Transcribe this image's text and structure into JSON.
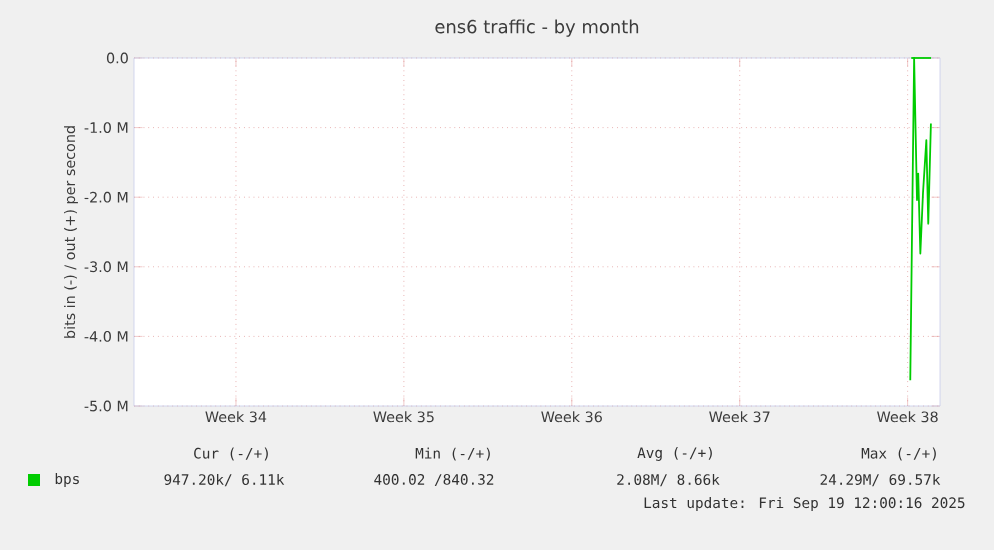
{
  "chart_data": {
    "type": "line",
    "title": "ens6 traffic - by month",
    "ylabel": "bits in (-) / out (+) per second",
    "series": [
      {
        "name": "bps",
        "color": "#00cc00",
        "x": [
          "2025-09-18T14:38",
          "2025-09-18T18:29",
          "2025-09-18T21:22",
          "2025-09-18T22:34",
          "2025-09-19T00:43",
          "2025-09-19T03:22",
          "2025-09-19T06:43",
          "2025-09-19T08:38",
          "2025-09-19T11:17"
        ],
        "values": [
          -4.63,
          0,
          -2.04,
          -1.66,
          -2.81,
          -1.94,
          -1.18,
          -2.38,
          -0.94
        ]
      },
      {
        "color": "#00cc00",
        "x": [
          "2025-09-18T15:36",
          "2025-09-19T11:30"
        ],
        "values": [
          0,
          0
        ]
      }
    ],
    "xlim": [
      "2025-08-17T06:00",
      "2025-09-19T20:24"
    ],
    "ylim": [
      -5,
      0
    ],
    "xticks": [
      {
        "value": "2025-08-21T12:00",
        "label": "Week 34"
      },
      {
        "value": "2025-08-28T12:00",
        "label": "Week 35"
      },
      {
        "value": "2025-09-04T12:00",
        "label": "Week 36"
      },
      {
        "value": "2025-09-11T12:00",
        "label": "Week 37"
      },
      {
        "value": "2025-09-18T12:00",
        "label": "Week 38"
      }
    ],
    "yticks": [
      {
        "value": -5,
        "label": "-5.0 M"
      },
      {
        "value": -4,
        "label": "-4.0 M"
      },
      {
        "value": -3,
        "label": "-3.0 M"
      },
      {
        "value": -2,
        "label": "-2.0 M"
      },
      {
        "value": -1,
        "label": "-1.0 M"
      },
      {
        "value": 0,
        "label": "0.0"
      }
    ],
    "grid": true,
    "legend": "bottom left",
    "marker": "none",
    "line_style": "solid",
    "annotations": [
      "Cur (-/+)",
      "Min (-/+)",
      "Avg (-/+)",
      "Max (-/+)",
      "947.20k/  6.11k",
      "400.02 /840.32",
      "2.08M/  8.66k",
      "24.29M/ 69.57k",
      "Last update: Fri Sep 19 12:00:16 2025"
    ]
  }
}
